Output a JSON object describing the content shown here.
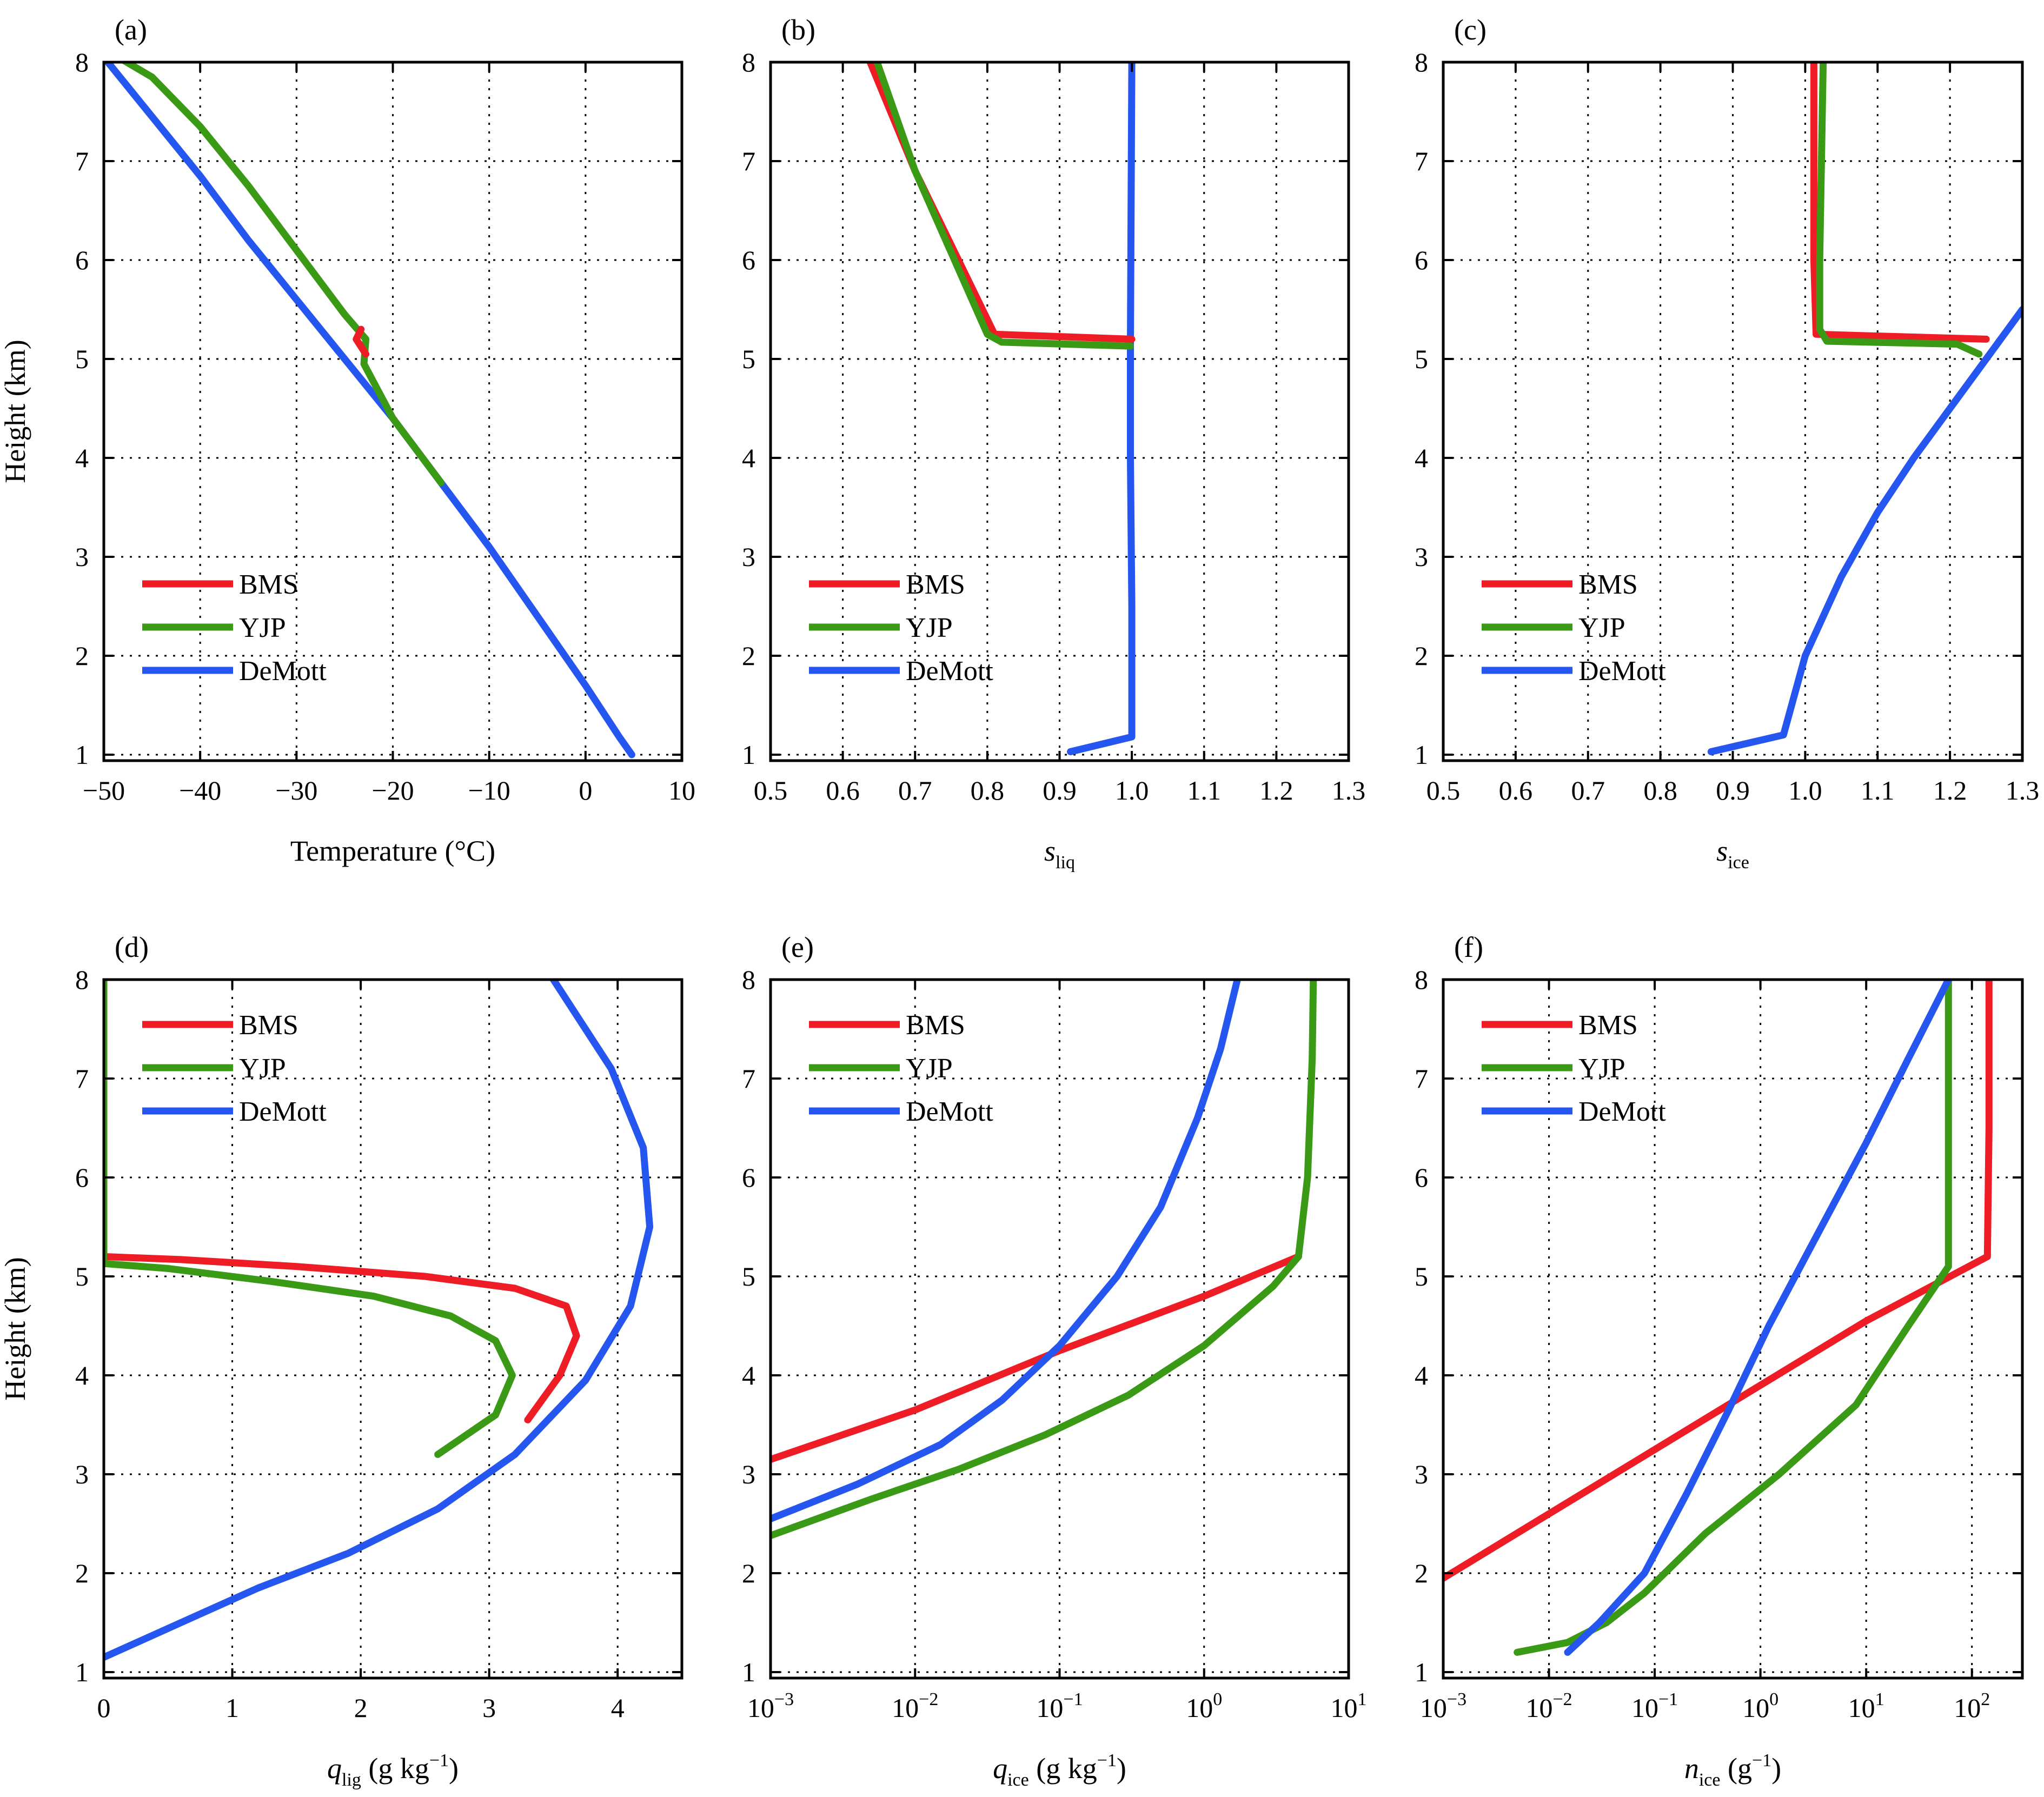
{
  "figure": {
    "colors": {
      "BMS": "#ee1c25",
      "YJP": "#3a9a16",
      "DeMott": "#2557f0",
      "axis": "#000000",
      "grid": "#000000"
    },
    "shared_ylabel": "Height (km)"
  },
  "chart_data": [
    {
      "id": "a",
      "panel_label": "(a)",
      "type": "line",
      "xlabel": {
        "main": "Temperature (°C)"
      },
      "xscale": "linear",
      "xlim": [
        -50,
        10
      ],
      "xticks": [
        -50,
        -40,
        -30,
        -20,
        -10,
        0,
        10
      ],
      "xtick_labels": [
        "−50",
        "−40",
        "−30",
        "−20",
        "−10",
        "0",
        "10"
      ],
      "ylabel": "Height (km)",
      "ylim": [
        1,
        8
      ],
      "yticks": [
        1,
        2,
        3,
        4,
        5,
        6,
        7,
        8
      ],
      "ytick_labels": [
        "1",
        "2",
        "3",
        "4",
        "5",
        "6",
        "7",
        "8"
      ],
      "legend": {
        "position": "lower-left",
        "entries": [
          "BMS",
          "YJP",
          "DeMott"
        ]
      },
      "series": [
        {
          "name": "DeMott",
          "x": [
            4.8,
            3.5,
            0,
            -5,
            -10,
            -15,
            -20,
            -25,
            -30,
            -35,
            -40,
            -45,
            -50
          ],
          "y": [
            1.0,
            1.18,
            1.7,
            2.4,
            3.1,
            3.75,
            4.4,
            5.0,
            5.6,
            6.2,
            6.85,
            7.45,
            8.05
          ]
        },
        {
          "name": "YJP",
          "x": [
            -15,
            -20,
            -23,
            -22.8,
            -25,
            -30,
            -35,
            -40,
            -45,
            -48.5
          ],
          "y": [
            3.75,
            4.4,
            4.95,
            5.2,
            5.45,
            6.1,
            6.75,
            7.35,
            7.85,
            8.05
          ]
        },
        {
          "name": "BMS",
          "x": [
            -22.8,
            -23.8,
            -23.3
          ],
          "y": [
            5.05,
            5.2,
            5.3
          ]
        }
      ]
    },
    {
      "id": "b",
      "panel_label": "(b)",
      "type": "line",
      "xlabel": {
        "main": "s",
        "sub": "liq"
      },
      "xscale": "linear",
      "xlim": [
        0.5,
        1.3
      ],
      "xticks": [
        0.5,
        0.6,
        0.7,
        0.8,
        0.9,
        1.0,
        1.1,
        1.2,
        1.3
      ],
      "xtick_labels": [
        "0.5",
        "0.6",
        "0.7",
        "0.8",
        "0.9",
        "1.0",
        "1.1",
        "1.2",
        "1.3"
      ],
      "ylim": [
        1,
        8
      ],
      "yticks": [
        1,
        2,
        3,
        4,
        5,
        6,
        7,
        8
      ],
      "ytick_labels": [
        "1",
        "2",
        "3",
        "4",
        "5",
        "6",
        "7",
        "8"
      ],
      "legend": {
        "position": "lower-left",
        "entries": [
          "BMS",
          "YJP",
          "DeMott"
        ]
      },
      "series": [
        {
          "name": "DeMott",
          "x": [
            0.915,
            1.0,
            1.0,
            0.998,
            0.998,
            1.0
          ],
          "y": [
            1.03,
            1.18,
            2.5,
            4.0,
            5.15,
            8.0
          ]
        },
        {
          "name": "BMS",
          "x": [
            1.0,
            0.81,
            0.7,
            0.635
          ],
          "y": [
            5.2,
            5.25,
            6.9,
            8.05
          ]
        },
        {
          "name": "YJP",
          "x": [
            0.998,
            0.82,
            0.8,
            0.7,
            0.645
          ],
          "y": [
            5.13,
            5.17,
            5.25,
            6.9,
            8.05
          ]
        }
      ]
    },
    {
      "id": "c",
      "panel_label": "(c)",
      "type": "line",
      "xlabel": {
        "main": "s",
        "sub": "ice"
      },
      "xscale": "linear",
      "xlim": [
        0.5,
        1.3
      ],
      "xticks": [
        0.5,
        0.6,
        0.7,
        0.8,
        0.9,
        1.0,
        1.1,
        1.2,
        1.3
      ],
      "xtick_labels": [
        "0.5",
        "0.6",
        "0.7",
        "0.8",
        "0.9",
        "1.0",
        "1.1",
        "1.2",
        "1.3"
      ],
      "ylim": [
        1,
        8
      ],
      "yticks": [
        1,
        2,
        3,
        4,
        5,
        6,
        7,
        8
      ],
      "ytick_labels": [
        "1",
        "2",
        "3",
        "4",
        "5",
        "6",
        "7",
        "8"
      ],
      "legend": {
        "position": "lower-left",
        "entries": [
          "BMS",
          "YJP",
          "DeMott"
        ]
      },
      "series": [
        {
          "name": "DeMott",
          "x": [
            0.87,
            0.97,
            1.0,
            1.05,
            1.1,
            1.15,
            1.2,
            1.25,
            1.3
          ],
          "y": [
            1.03,
            1.2,
            2.0,
            2.8,
            3.45,
            4.0,
            4.5,
            5.0,
            5.5
          ]
        },
        {
          "name": "BMS",
          "x": [
            1.25,
            1.015,
            1.012,
            1.012
          ],
          "y": [
            5.2,
            5.25,
            6.0,
            8.05
          ]
        },
        {
          "name": "YJP",
          "x": [
            1.24,
            1.21,
            1.03,
            1.02,
            1.02,
            1.025
          ],
          "y": [
            5.05,
            5.15,
            5.18,
            5.3,
            6.0,
            8.05
          ]
        }
      ]
    },
    {
      "id": "d",
      "panel_label": "(d)",
      "type": "line",
      "xlabel": {
        "main": "q",
        "sub": "lig",
        "unit_pre": " (g kg",
        "unit_sup": "−1",
        "unit_post": ")"
      },
      "xscale": "linear",
      "xlim": [
        0,
        4.5
      ],
      "xticks": [
        0,
        1,
        2,
        3,
        4
      ],
      "xtick_labels": [
        "0",
        "1",
        "2",
        "3",
        "4"
      ],
      "ylabel": "Height (km)",
      "ylim": [
        1,
        8
      ],
      "yticks": [
        1,
        2,
        3,
        4,
        5,
        6,
        7,
        8
      ],
      "ytick_labels": [
        "1",
        "2",
        "3",
        "4",
        "5",
        "6",
        "7",
        "8"
      ],
      "legend": {
        "position": "upper-left",
        "entries": [
          "BMS",
          "YJP",
          "DeMott"
        ]
      },
      "series": [
        {
          "name": "DeMott",
          "x": [
            0.0,
            0.6,
            1.2,
            1.9,
            2.6,
            3.2,
            3.75,
            4.1,
            4.25,
            4.2,
            3.95,
            3.5
          ],
          "y": [
            1.15,
            1.5,
            1.85,
            2.2,
            2.65,
            3.2,
            3.95,
            4.7,
            5.5,
            6.3,
            7.1,
            8.0
          ]
        },
        {
          "name": "BMS",
          "x": [
            3.3,
            3.55,
            3.68,
            3.6,
            3.2,
            2.5,
            1.5,
            0.6,
            0.0
          ],
          "y": [
            3.55,
            4.0,
            4.4,
            4.7,
            4.88,
            5.0,
            5.1,
            5.17,
            5.2
          ]
        },
        {
          "name": "YJP",
          "x": [
            2.6,
            3.05,
            3.18,
            3.05,
            2.7,
            2.1,
            1.3,
            0.5,
            0.0,
            0.0,
            0.0
          ],
          "y": [
            3.2,
            3.6,
            4.0,
            4.35,
            4.6,
            4.8,
            4.95,
            5.08,
            5.13,
            5.5,
            8.0
          ]
        }
      ]
    },
    {
      "id": "e",
      "panel_label": "(e)",
      "type": "line",
      "xlabel": {
        "main": "q",
        "sub": "ice",
        "unit_pre": " (g kg",
        "unit_sup": "−1",
        "unit_post": ")"
      },
      "xscale": "log",
      "xlim": [
        0.001,
        10
      ],
      "xticks": [
        0.001,
        0.01,
        0.1,
        1,
        10
      ],
      "xtick_labels": [
        {
          "base": "10",
          "exp": "−3"
        },
        {
          "base": "10",
          "exp": "−2"
        },
        {
          "base": "10",
          "exp": "−1"
        },
        {
          "base": "10",
          "exp": "0"
        },
        {
          "base": "10",
          "exp": "1"
        }
      ],
      "ylim": [
        1,
        8
      ],
      "yticks": [
        1,
        2,
        3,
        4,
        5,
        6,
        7,
        8
      ],
      "ytick_labels": [
        "1",
        "2",
        "3",
        "4",
        "5",
        "6",
        "7",
        "8"
      ],
      "legend": {
        "position": "upper-left",
        "entries": [
          "BMS",
          "YJP",
          "DeMott"
        ]
      },
      "series": [
        {
          "name": "BMS",
          "x": [
            0.001,
            0.01,
            0.1,
            1,
            4.5
          ],
          "y": [
            3.15,
            3.65,
            4.25,
            4.8,
            5.2
          ]
        },
        {
          "name": "YJP",
          "x": [
            0.001,
            0.005,
            0.02,
            0.08,
            0.3,
            1,
            3,
            4.5,
            5.2,
            5.6,
            5.7
          ],
          "y": [
            2.38,
            2.75,
            3.05,
            3.4,
            3.8,
            4.3,
            4.9,
            5.2,
            6.0,
            7.2,
            8.0
          ]
        },
        {
          "name": "DeMott",
          "x": [
            0.001,
            0.004,
            0.015,
            0.04,
            0.1,
            0.25,
            0.5,
            0.9,
            1.3,
            1.7
          ],
          "y": [
            2.55,
            2.9,
            3.3,
            3.75,
            4.3,
            5.0,
            5.7,
            6.6,
            7.3,
            8.0
          ]
        }
      ]
    },
    {
      "id": "f",
      "panel_label": "(f)",
      "type": "line",
      "xlabel": {
        "main": "n",
        "sub": "ice",
        "unit_pre": " (g",
        "unit_sup": "−1",
        "unit_post": ")"
      },
      "xscale": "log",
      "xlim": [
        0.001,
        300
      ],
      "xticks": [
        0.001,
        0.01,
        0.1,
        1,
        10,
        100
      ],
      "xtick_labels": [
        {
          "base": "10",
          "exp": "−3"
        },
        {
          "base": "10",
          "exp": "−2"
        },
        {
          "base": "10",
          "exp": "−1"
        },
        {
          "base": "10",
          "exp": "0"
        },
        {
          "base": "10",
          "exp": "1"
        },
        {
          "base": "10",
          "exp": "2"
        }
      ],
      "ylim": [
        1,
        8
      ],
      "yticks": [
        1,
        2,
        3,
        4,
        5,
        6,
        7,
        8
      ],
      "ytick_labels": [
        "1",
        "2",
        "3",
        "4",
        "5",
        "6",
        "7",
        "8"
      ],
      "legend": {
        "position": "upper-left",
        "entries": [
          "BMS",
          "YJP",
          "DeMott"
        ]
      },
      "series": [
        {
          "name": "BMS",
          "x": [
            0.001,
            0.01,
            0.1,
            1,
            10,
            140,
            145,
            145
          ],
          "y": [
            1.95,
            2.6,
            3.25,
            3.9,
            4.55,
            5.2,
            6.5,
            8.0
          ]
        },
        {
          "name": "YJP",
          "x": [
            0.005,
            0.015,
            0.035,
            0.08,
            0.3,
            1.5,
            8,
            25,
            60,
            60,
            60
          ],
          "y": [
            1.2,
            1.3,
            1.5,
            1.8,
            2.4,
            3.0,
            3.7,
            4.5,
            5.1,
            6.5,
            8.0
          ]
        },
        {
          "name": "DeMott",
          "x": [
            0.015,
            0.03,
            0.08,
            0.2,
            0.5,
            1.2,
            3,
            10,
            25,
            60
          ],
          "y": [
            1.2,
            1.5,
            2.0,
            2.8,
            3.65,
            4.5,
            5.3,
            6.35,
            7.2,
            8.0
          ]
        }
      ]
    }
  ]
}
